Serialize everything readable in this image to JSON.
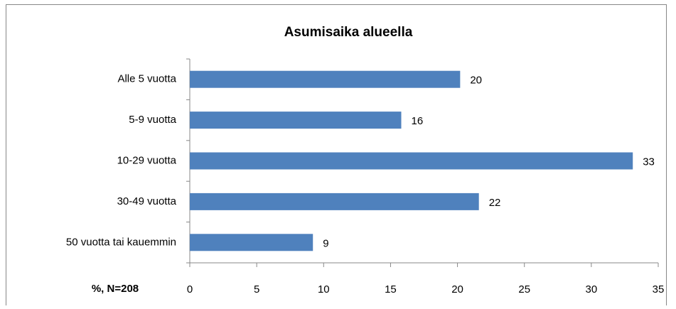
{
  "chart_data": {
    "type": "bar",
    "orientation": "horizontal",
    "title": "Asumisaika alueella",
    "categories": [
      "Alle 5 vuotta",
      "5-9 vuotta",
      "10-29 vuotta",
      "30-49 vuotta",
      "50 vuotta tai kauemmin"
    ],
    "values": [
      20.2,
      15.8,
      33.1,
      21.6,
      9.2
    ],
    "value_labels": [
      "20",
      "16",
      "33",
      "22",
      "9"
    ],
    "color": "#4f81bd",
    "x_label": "%, N=208",
    "xlim": [
      0,
      35
    ],
    "xticks": [
      0,
      5,
      10,
      15,
      20,
      25,
      30,
      35
    ],
    "grid": false
  }
}
